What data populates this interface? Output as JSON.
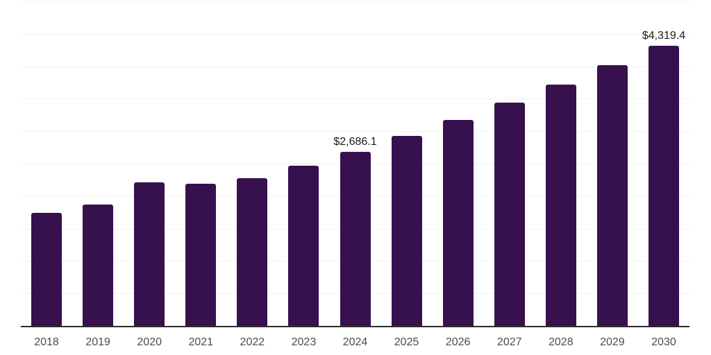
{
  "chart_data": {
    "type": "bar",
    "title": "",
    "categories": [
      "2018",
      "2019",
      "2020",
      "2021",
      "2022",
      "2023",
      "2024",
      "2025",
      "2026",
      "2027",
      "2028",
      "2029",
      "2030"
    ],
    "values": [
      1738.0,
      1865.5,
      2217.0,
      2185.0,
      2281.0,
      2473.0,
      2686.1,
      2931.5,
      3177.0,
      3443.0,
      3720.0,
      4019.0,
      4319.4
    ],
    "point_labels": [
      "",
      "",
      "",
      "",
      "",
      "",
      "$2,686.1",
      "",
      "",
      "",
      "",
      "",
      "$4,319.4"
    ],
    "xlabel": "",
    "ylabel": "",
    "ylim": [
      0,
      5000
    ],
    "gridline_step": 500,
    "grid": "horizontal",
    "y_tick_labels_visible": false,
    "legend_position": "none",
    "colors": {
      "bar": "#36114d",
      "axis_line": "#2b2b2b",
      "gridline": "#f2f2f2",
      "tick_label": "#4b4b4b",
      "data_label": "#1a1a1a",
      "background": "#ffffff"
    }
  }
}
